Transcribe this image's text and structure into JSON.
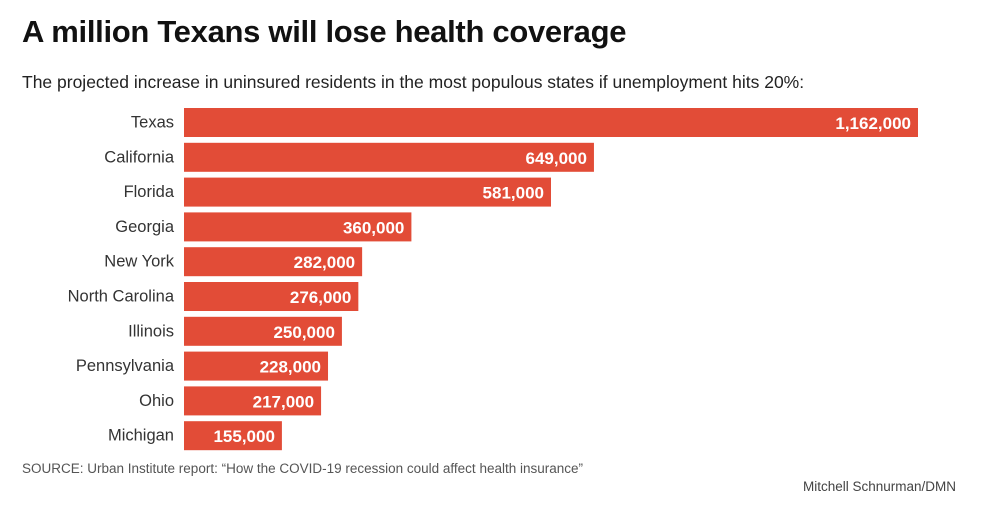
{
  "chart_data": {
    "type": "bar",
    "orientation": "horizontal",
    "title": "A million Texans will lose health coverage",
    "subtitle": "The projected increase in uninsured residents in the most populous states if unemployment hits 20%:",
    "categories": [
      "Texas",
      "California",
      "Florida",
      "Georgia",
      "New York",
      "North Carolina",
      "Illinois",
      "Pennsylvania",
      "Ohio",
      "Michigan"
    ],
    "values": [
      1162000,
      649000,
      581000,
      360000,
      282000,
      276000,
      250000,
      228000,
      217000,
      155000
    ],
    "value_labels": [
      "1,162,000",
      "649,000",
      "581,000",
      "360,000",
      "282,000",
      "276,000",
      "250,000",
      "228,000",
      "217,000",
      "155,000"
    ],
    "xlim": [
      0,
      1162000
    ],
    "grid": false,
    "legend": "none",
    "bar_color": "#e24c37",
    "label_color": "#ffffff"
  },
  "source": "SOURCE: Urban Institute report: “How the COVID-19 recession could affect health insurance”",
  "credit": "Mitchell Schnurman/DMN"
}
